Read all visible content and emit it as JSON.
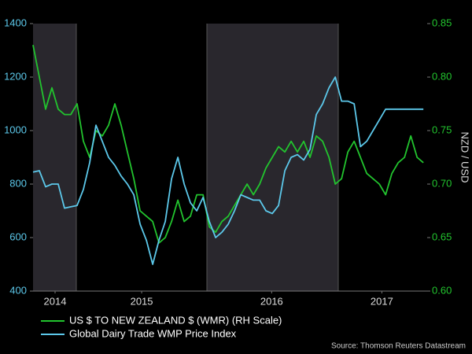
{
  "chart_data": {
    "type": "line",
    "source": "Source: Thomson Reuters Datastream",
    "y2_label": "NZD / USD",
    "xlim": [
      0,
      62.6
    ],
    "xticks": [
      {
        "value": 3.5,
        "label": "2014"
      },
      {
        "value": 17.25,
        "label": "2015"
      },
      {
        "value": 37.9,
        "label": "2016"
      },
      {
        "value": 55.4,
        "label": "2017"
      }
    ],
    "ylim": [
      400,
      1400
    ],
    "yticks": [
      400,
      600,
      800,
      1000,
      1200,
      1400
    ],
    "y2lim": [
      0.6,
      0.85
    ],
    "y2ticks": [
      {
        "value": 0.6,
        "label": "0.60"
      },
      0.65,
      {
        "value": 0.7,
        "label": "0.70"
      },
      0.75,
      {
        "value": 0.8,
        "label": "0.80"
      },
      0.85
    ],
    "series": [
      {
        "name": "US $ TO NEW ZEALAND $ (WMR) (RH Scale)",
        "color": "#22c42e",
        "axis": "y2",
        "values": [
          0.83,
          0.8,
          0.77,
          0.79,
          0.77,
          0.765,
          0.765,
          0.775,
          0.74,
          0.725,
          0.75,
          0.745,
          0.755,
          0.775,
          0.755,
          0.73,
          0.705,
          0.675,
          0.67,
          0.665,
          0.645,
          0.65,
          0.665,
          0.685,
          0.665,
          0.67,
          0.69,
          0.69,
          0.66,
          0.655,
          0.665,
          0.67,
          0.68,
          0.69,
          0.7,
          0.69,
          0.7,
          0.715,
          0.725,
          0.735,
          0.73,
          0.74,
          0.73,
          0.74,
          0.725,
          0.745,
          0.74,
          0.725,
          0.7,
          0.705,
          0.73,
          0.74,
          0.725,
          0.71,
          0.705,
          0.7,
          0.69,
          0.71,
          0.72,
          0.725,
          0.745,
          0.725,
          0.72
        ]
      },
      {
        "name": "Global Dairy Trade WMP Price Index",
        "color": "#5cc8ea",
        "values": [
          845,
          850,
          790,
          800,
          800,
          710,
          715,
          720,
          780,
          880,
          1020,
          960,
          900,
          870,
          830,
          800,
          760,
          650,
          590,
          500,
          590,
          660,
          820,
          900,
          800,
          730,
          700,
          750,
          660,
          600,
          620,
          650,
          700,
          760,
          750,
          740,
          740,
          700,
          690,
          720,
          850,
          900,
          910,
          890,
          930,
          1060,
          1100,
          1160,
          1200,
          1110,
          1110,
          1100,
          940,
          960,
          1000,
          1040,
          1080,
          1080,
          1080,
          1080,
          1080,
          1080,
          1080
        ]
      }
    ]
  }
}
